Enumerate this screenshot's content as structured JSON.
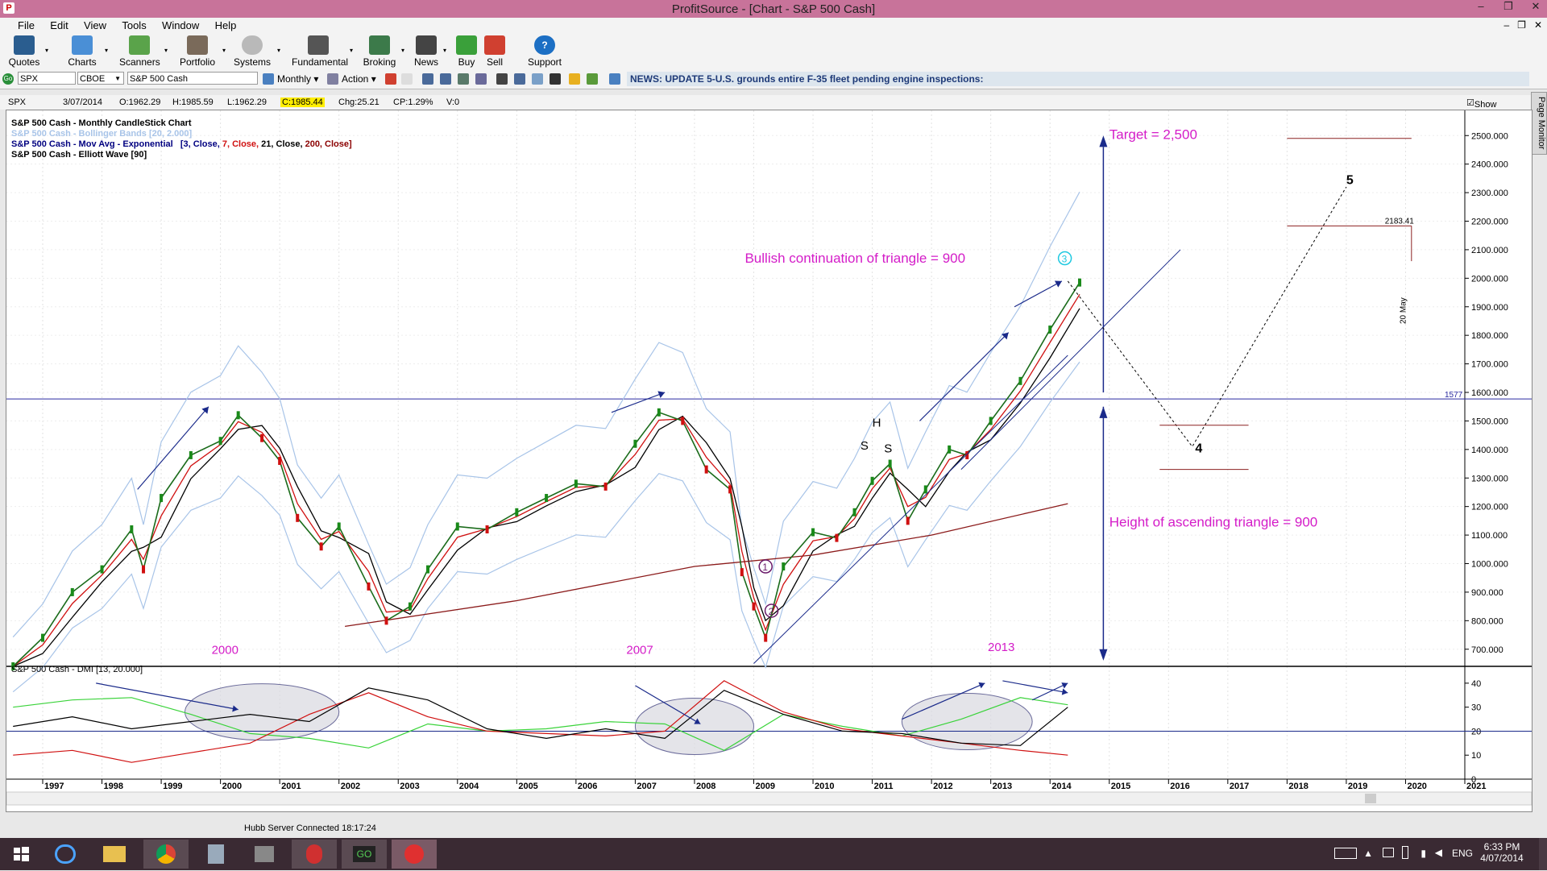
{
  "window": {
    "title": "ProfitSource - [Chart - S&P 500 Cash]"
  },
  "menu": [
    "File",
    "Edit",
    "View",
    "Tools",
    "Window",
    "Help"
  ],
  "toolbar": {
    "buttons": [
      "Quotes",
      "Charts",
      "Scanners",
      "Portfolio",
      "Systems",
      "Fundamental",
      "Broking",
      "News",
      "Buy",
      "Sell",
      "Support Center"
    ]
  },
  "symbolbar": {
    "symbol": "SPX",
    "exchange": "CBOE",
    "name": "S&P 500 Cash",
    "period": "Monthly",
    "action": "Action",
    "news": "NEWS: UPDATE 5-U.S. grounds entire F-35 fleet pending engine inspections:"
  },
  "infobar": {
    "symbol": "SPX",
    "date": "3/07/2014",
    "open": "O:1962.29",
    "high": "H:1985.59",
    "low": "L:1962.29",
    "close": "C:1985.44",
    "change": "Chg:25.21",
    "change_pct": "CP:1.29%",
    "volume": "V:0",
    "show_last": "Show Last"
  },
  "side_tab": "Page Monitor",
  "chart_data": {
    "type": "line",
    "legend": [
      {
        "text": "S&P 500 Cash - Monthly CandleStick Chart",
        "color": "#000000"
      },
      {
        "text": "S&P 500 Cash - Bollinger Bands [20, 2.000]",
        "color": "#a8c4e8"
      },
      {
        "text": "S&P 500 Cash - Mov Avg - Exponential",
        "color": "#000080"
      },
      {
        "text": "S&P 500 Cash - Elliott Wave [90]",
        "color": "#000000"
      }
    ],
    "mov_avg_params": {
      "p1": "[3, Close,",
      "p2": "7, Close,",
      "p3": "21, Close,",
      "p4": "200, Close]"
    },
    "x_axis_years": [
      "1997",
      "1998",
      "1999",
      "2000",
      "2001",
      "2002",
      "2003",
      "2004",
      "2005",
      "2006",
      "2007",
      "2008",
      "2009",
      "2010",
      "2011",
      "2012",
      "2013",
      "2014",
      "2015",
      "2016",
      "2017",
      "2018",
      "2019",
      "2020",
      "2021"
    ],
    "y_ticks": [
      "2500.000",
      "2400.000",
      "2300.000",
      "2200.000",
      "2100.000",
      "2000.000",
      "1900.000",
      "1800.000",
      "1700.000",
      "1600.000",
      "1500.000",
      "1400.000",
      "1300.000",
      "1200.000",
      "1100.000",
      "1000.000",
      "900.000",
      "800.000",
      "700.000"
    ],
    "ylim": [
      640,
      2560
    ],
    "price_path": [
      [
        1996.5,
        640
      ],
      [
        1997.0,
        740
      ],
      [
        1997.5,
        900
      ],
      [
        1998.0,
        980
      ],
      [
        1998.5,
        1120
      ],
      [
        1998.7,
        980
      ],
      [
        1999.0,
        1230
      ],
      [
        1999.5,
        1380
      ],
      [
        2000.0,
        1430
      ],
      [
        2000.3,
        1520
      ],
      [
        2000.7,
        1440
      ],
      [
        2001.0,
        1360
      ],
      [
        2001.3,
        1160
      ],
      [
        2001.7,
        1060
      ],
      [
        2002.0,
        1130
      ],
      [
        2002.5,
        920
      ],
      [
        2002.8,
        800
      ],
      [
        2003.2,
        850
      ],
      [
        2003.5,
        980
      ],
      [
        2004.0,
        1130
      ],
      [
        2004.5,
        1120
      ],
      [
        2005.0,
        1180
      ],
      [
        2005.5,
        1230
      ],
      [
        2006.0,
        1280
      ],
      [
        2006.5,
        1270
      ],
      [
        2007.0,
        1420
      ],
      [
        2007.4,
        1530
      ],
      [
        2007.8,
        1500
      ],
      [
        2008.2,
        1330
      ],
      [
        2008.6,
        1260
      ],
      [
        2008.8,
        970
      ],
      [
        2009.0,
        850
      ],
      [
        2009.2,
        740
      ],
      [
        2009.5,
        990
      ],
      [
        2010.0,
        1110
      ],
      [
        2010.4,
        1090
      ],
      [
        2010.7,
        1180
      ],
      [
        2011.0,
        1290
      ],
      [
        2011.3,
        1350
      ],
      [
        2011.6,
        1150
      ],
      [
        2011.9,
        1260
      ],
      [
        2012.3,
        1400
      ],
      [
        2012.6,
        1380
      ],
      [
        2013.0,
        1500
      ],
      [
        2013.5,
        1640
      ],
      [
        2014.0,
        1820
      ],
      [
        2014.5,
        1985
      ]
    ],
    "hlines": [
      {
        "value": 1577,
        "label": "1577"
      },
      {
        "value": 2183.41,
        "label": "2183.41"
      }
    ],
    "annotations": {
      "target": "Target = 2,500",
      "bullish": "Bullish continuation of triangle = 900",
      "height": "Height of ascending triangle = 900",
      "year_2000": "2000",
      "year_2007": "2007",
      "year_2013": "2013",
      "h": "H",
      "s1": "S",
      "s2": "S",
      "wave1": "1",
      "wave2": "2",
      "wave3": "3",
      "wave4": "4",
      "wave5": "5",
      "date_20may": "20 May"
    },
    "dmi": {
      "title": "S&P 500 Cash - DMI [13, 20.000]",
      "y_ticks": [
        "40",
        "30",
        "20",
        "10",
        "0"
      ],
      "ylim": [
        0,
        45
      ],
      "threshold": 20,
      "plus_di": [
        [
          1996.5,
          30
        ],
        [
          1997.5,
          33
        ],
        [
          1998.5,
          34
        ],
        [
          1999.5,
          27
        ],
        [
          2000.5,
          19
        ],
        [
          2001.5,
          17
        ],
        [
          2002.5,
          13
        ],
        [
          2003.5,
          23
        ],
        [
          2004.5,
          20
        ],
        [
          2005.5,
          21
        ],
        [
          2006.5,
          24
        ],
        [
          2007.5,
          23
        ],
        [
          2008.5,
          12
        ],
        [
          2009.5,
          27
        ],
        [
          2010.5,
          22
        ],
        [
          2011.5,
          18
        ],
        [
          2012.5,
          25
        ],
        [
          2013.5,
          34
        ],
        [
          2014.3,
          31
        ]
      ],
      "minus_di": [
        [
          1996.5,
          10
        ],
        [
          1997.5,
          12
        ],
        [
          1998.5,
          7
        ],
        [
          1999.5,
          11
        ],
        [
          2000.5,
          15
        ],
        [
          2001.5,
          27
        ],
        [
          2002.5,
          36
        ],
        [
          2003.5,
          26
        ],
        [
          2004.5,
          20
        ],
        [
          2005.5,
          19
        ],
        [
          2006.5,
          18
        ],
        [
          2007.5,
          20
        ],
        [
          2008.5,
          41
        ],
        [
          2009.5,
          28
        ],
        [
          2010.5,
          21
        ],
        [
          2011.5,
          18
        ],
        [
          2012.5,
          15
        ],
        [
          2013.5,
          12
        ],
        [
          2014.3,
          10
        ]
      ],
      "adx": [
        [
          1996.5,
          22
        ],
        [
          1997.5,
          26
        ],
        [
          1998.5,
          21
        ],
        [
          1999.5,
          24
        ],
        [
          2000.5,
          27
        ],
        [
          2001.5,
          24
        ],
        [
          2002.5,
          38
        ],
        [
          2003.5,
          33
        ],
        [
          2004.5,
          21
        ],
        [
          2005.5,
          17
        ],
        [
          2006.5,
          21
        ],
        [
          2007.5,
          17
        ],
        [
          2008.5,
          37
        ],
        [
          2009.5,
          27
        ],
        [
          2010.5,
          20
        ],
        [
          2011.5,
          19
        ],
        [
          2012.5,
          15
        ],
        [
          2013.5,
          14
        ],
        [
          2014.3,
          30
        ]
      ]
    }
  },
  "status": {
    "server": "Hubb Server Connected 18:17:24"
  },
  "taskbar": {
    "lang": "ENG",
    "time": "6:33 PM",
    "date": "4/07/2014"
  }
}
